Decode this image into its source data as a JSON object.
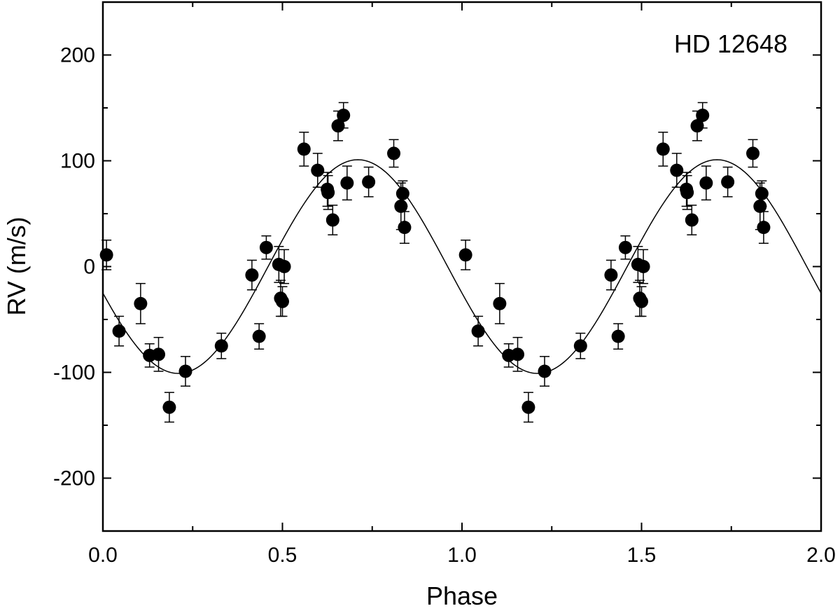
{
  "chart_data": {
    "type": "scatter",
    "title": "HD 12648",
    "xlabel": "Phase",
    "ylabel": "RV (m/s)",
    "xlim": [
      0.0,
      2.0
    ],
    "ylim": [
      -250,
      250
    ],
    "x_ticks": [
      0.0,
      0.5,
      1.0,
      1.5,
      2.0
    ],
    "x_tick_labels": [
      "0.0",
      "0.5",
      "1.0",
      "1.5",
      "2.0"
    ],
    "y_ticks": [
      -200,
      -100,
      0,
      100,
      200
    ],
    "y_tick_labels": [
      "-200",
      "-100",
      "0",
      "100",
      "200"
    ],
    "y_minor_ticks": [
      -150,
      -50,
      50,
      150
    ],
    "x_minor_ticks": [
      0.25,
      0.75,
      1.25,
      1.75
    ],
    "grid": false,
    "colors": {
      "marker": "#000000",
      "line": "#000000",
      "background": "#ffffff"
    },
    "series": [
      {
        "type": "scatter_errorbar",
        "x": [
          0.01,
          0.045,
          0.105,
          0.13,
          0.155,
          0.185,
          0.23,
          0.33,
          0.415,
          0.435,
          0.455,
          0.49,
          0.495,
          0.5,
          0.505,
          0.56,
          0.598,
          0.627,
          0.625,
          0.64,
          0.655,
          0.67,
          0.68,
          0.74,
          0.81,
          0.83,
          0.835,
          0.84,
          1.01,
          1.045,
          1.105,
          1.13,
          1.155,
          1.185,
          1.23,
          1.33,
          1.415,
          1.435,
          1.455,
          1.49,
          1.495,
          1.5,
          1.505,
          1.56,
          1.598,
          1.627,
          1.625,
          1.64,
          1.655,
          1.67,
          1.68,
          1.74,
          1.81,
          1.83,
          1.835,
          1.84
        ],
        "y": [
          11,
          -61,
          -35,
          -84,
          -83,
          -133,
          -99,
          -75,
          -8,
          -66,
          18,
          2,
          -30,
          -33,
          0,
          111,
          91,
          70,
          73,
          44,
          133,
          143,
          79,
          80,
          107,
          57,
          69,
          37,
          11,
          -61,
          -35,
          -84,
          -83,
          -133,
          -99,
          -75,
          -8,
          -66,
          18,
          2,
          -30,
          -33,
          0,
          111,
          91,
          70,
          73,
          44,
          133,
          143,
          79,
          80,
          107,
          57,
          69,
          37
        ],
        "err": [
          14,
          14,
          19,
          11,
          16,
          14,
          14,
          12,
          14,
          12,
          11,
          17,
          17,
          14,
          16,
          16,
          16,
          16,
          16,
          14,
          14,
          12,
          16,
          14,
          13,
          22,
          12,
          15,
          14,
          14,
          19,
          11,
          16,
          14,
          14,
          12,
          14,
          12,
          11,
          17,
          17,
          14,
          16,
          16,
          16,
          16,
          16,
          14,
          14,
          12,
          16,
          14,
          13,
          22,
          12,
          15
        ]
      },
      {
        "type": "line",
        "model": "sine",
        "amplitude": 101,
        "offset": 0,
        "phase_of_maximum": 0.71,
        "period_in_phase": 1.0
      }
    ]
  }
}
